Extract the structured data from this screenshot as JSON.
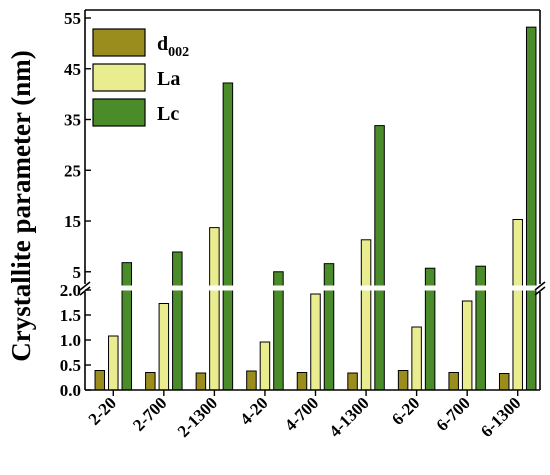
{
  "chart_data": {
    "type": "bar",
    "ylabel": "Crystallite parameter (nm)",
    "categories": [
      "2-20",
      "2-700",
      "2-1300",
      "4-20",
      "4-700",
      "4-1300",
      "6-20",
      "6-700",
      "6-1300"
    ],
    "series": [
      {
        "name": "d",
        "name_subscript": "002",
        "color": "#9b8c1e",
        "values": [
          0.39,
          0.35,
          0.34,
          0.38,
          0.35,
          0.34,
          0.39,
          0.35,
          0.33
        ]
      },
      {
        "name": "La",
        "color": "#eaed8f",
        "values": [
          1.08,
          1.73,
          13.7,
          0.96,
          1.92,
          11.3,
          1.26,
          1.78,
          15.3
        ]
      },
      {
        "name": "Lc",
        "color": "#4a8c2a",
        "values": [
          6.8,
          8.9,
          42.2,
          5.0,
          6.6,
          33.8,
          5.7,
          6.1,
          53.2
        ]
      }
    ],
    "y_axis_break": {
      "lower_range": [
        0.0,
        2.0
      ],
      "upper_range": [
        2.0,
        55
      ]
    },
    "yticks_lower": [
      "0.0",
      "0.5",
      "1.0",
      "1.5",
      "2.0"
    ],
    "yticks_upper": [
      "5",
      "15",
      "25",
      "35",
      "45",
      "55"
    ],
    "legend_placement": "top-left",
    "grid": false
  }
}
